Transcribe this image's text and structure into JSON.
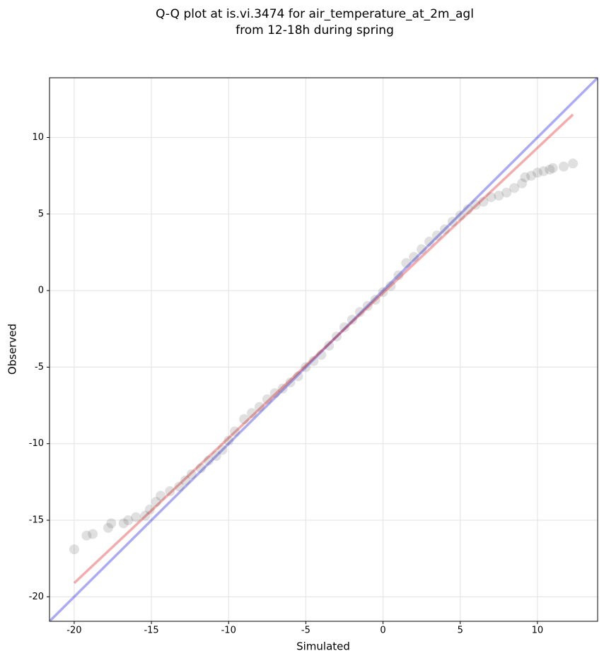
{
  "chart_data": {
    "type": "scatter",
    "title": [
      "Q-Q plot at is.vi.3474 for air_temperature_at_2m_agl",
      "from 12-18h during spring"
    ],
    "x_label": "Simulated",
    "y_label": "Observed",
    "xlim": [
      -21.6,
      13.9
    ],
    "ylim": [
      -21.6,
      13.9
    ],
    "xticks": [
      -20,
      -15,
      -10,
      -5,
      0,
      5,
      10
    ],
    "yticks": [
      -20,
      -15,
      -10,
      -5,
      0,
      5,
      10
    ],
    "grid": true,
    "points": {
      "color": "#3c3c3c",
      "x": [
        -20,
        -19.2,
        -18.8,
        -17.8,
        -17.6,
        -16.8,
        -16.5,
        -16.0,
        -15.4,
        -15.1,
        -14.7,
        -14.4,
        -13.8,
        -13.2,
        -12.8,
        -12.4,
        -11.8,
        -11.3,
        -10.8,
        -10.4,
        -10.0,
        -9.6,
        -9.0,
        -8.5,
        -8.0,
        -7.5,
        -7.0,
        -6.5,
        -6.0,
        -5.5,
        -5.0,
        -4.5,
        -4.0,
        -3.5,
        -3.0,
        -2.5,
        -2.0,
        -1.5,
        -1.0,
        -0.5,
        0,
        0.5,
        1.0,
        1.5,
        2.0,
        2.5,
        3.0,
        3.5,
        4.0,
        4.5,
        5.0,
        5.5,
        6.0,
        6.5,
        7.0,
        7.5,
        8.0,
        8.5,
        9.0,
        9.2,
        9.6,
        10.0,
        10.4,
        10.8,
        11.0,
        11.7,
        12.3
      ],
      "y": [
        -16.9,
        -16.0,
        -15.9,
        -15.5,
        -15.2,
        -15.2,
        -15.0,
        -14.8,
        -14.7,
        -14.3,
        -13.8,
        -13.4,
        -13.1,
        -12.8,
        -12.4,
        -12.0,
        -11.6,
        -11.1,
        -10.8,
        -10.4,
        -9.8,
        -9.2,
        -8.4,
        -8.0,
        -7.6,
        -7.1,
        -6.7,
        -6.4,
        -6.0,
        -5.6,
        -5.0,
        -4.6,
        -4.2,
        -3.6,
        -3.0,
        -2.4,
        -1.9,
        -1.4,
        -1.0,
        -0.6,
        -0.1,
        0.3,
        1.0,
        1.8,
        2.2,
        2.7,
        3.2,
        3.6,
        4.0,
        4.5,
        4.9,
        5.3,
        5.6,
        5.8,
        6.1,
        6.2,
        6.4,
        6.7,
        7.0,
        7.4,
        7.5,
        7.7,
        7.8,
        7.9,
        8.0,
        8.1,
        8.3
      ]
    },
    "lines": [
      {
        "color": "#0000e0",
        "x": [
          -21.6,
          13.9
        ],
        "y": [
          -21.6,
          13.9
        ]
      },
      {
        "color": "#e00000",
        "x": [
          -20,
          12.3
        ],
        "y": [
          -19.1,
          11.5
        ]
      }
    ]
  }
}
